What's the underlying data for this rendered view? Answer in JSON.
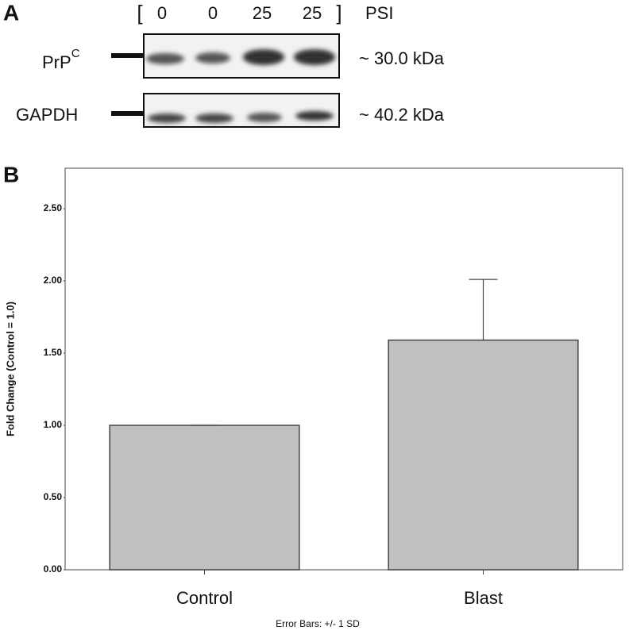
{
  "panel_a": {
    "label": "A",
    "bracket_open": "[",
    "lanes": [
      "0",
      "0",
      "25",
      "25"
    ],
    "bracket_close": "]",
    "unit": "PSI",
    "blots": [
      {
        "name": "PrP",
        "superscript": "C",
        "size": "~ 30.0 kDa"
      },
      {
        "name": "GAPDH",
        "size": "~ 40.2 kDa"
      }
    ]
  },
  "chart_data": {
    "panel_label": "B",
    "type": "bar",
    "y_label": "Fold Change (Control = 1.0)",
    "categories": [
      "Control",
      "Blast"
    ],
    "values": [
      1.0,
      1.59
    ],
    "errors": [
      0,
      0.42
    ],
    "color": "#c0c0c0",
    "ylim": [
      0,
      2.78
    ],
    "yticks": [
      {
        "value": 0,
        "label": "0.00"
      },
      {
        "value": 0.5,
        "label": "0.50"
      },
      {
        "value": 1,
        "label": "1.00"
      },
      {
        "value": 1.5,
        "label": "1.50"
      },
      {
        "value": 2,
        "label": "2.00"
      },
      {
        "value": 2.5,
        "label": "2.50"
      }
    ],
    "note": "Error Bars: +/- 1 SD"
  }
}
